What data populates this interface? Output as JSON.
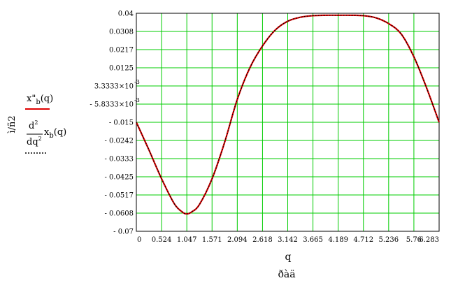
{
  "chart_data": {
    "type": "line",
    "xlabel": "q",
    "xunit": "ðàä",
    "ylabel": "ì/ñ2",
    "x_ticks": [
      "0",
      "0.524",
      "1.047",
      "1.571",
      "2.094",
      "2.618",
      "3.142",
      "3.665",
      "4.189",
      "4.712",
      "5.236",
      "5.76",
      "6.283"
    ],
    "y_ticks": [
      "0.04",
      "0.0308",
      "0.0217",
      "0.0125",
      "3.3333×10",
      "- 5.8333×10",
      "- 0.015",
      "- 0.0242",
      "- 0.0333",
      "- 0.0425",
      "- 0.0517",
      "- 0.0608",
      "- 0.07"
    ],
    "y_tick_exponents": [
      "",
      "",
      "",
      "",
      "-3",
      "-3",
      "",
      "",
      "",
      "",
      "",
      "",
      ""
    ],
    "xlim": [
      0,
      6.283
    ],
    "ylim": [
      -0.07,
      0.04
    ],
    "grid": true,
    "legend": [
      {
        "label": "x\"b(q)",
        "style": "solid",
        "color": "#e00000"
      },
      {
        "label": "d²/dq² xb(q)",
        "style": "dotted",
        "color": "#000000"
      }
    ],
    "series": [
      {
        "name": "x\"b(q)",
        "color": "#e00000",
        "x": [
          0,
          0.262,
          0.524,
          0.785,
          0.95,
          1.047,
          1.15,
          1.309,
          1.571,
          1.833,
          2.094,
          2.356,
          2.618,
          2.88,
          3.142,
          3.403,
          3.665,
          3.927,
          4.189,
          4.45,
          4.712,
          4.974,
          5.236,
          5.498,
          5.76,
          6.021,
          6.283
        ],
        "y": [
          -0.015,
          -0.029,
          -0.0435,
          -0.056,
          -0.0602,
          -0.0612,
          -0.0602,
          -0.0565,
          -0.0435,
          -0.025,
          -0.0035,
          0.0125,
          0.0235,
          0.0315,
          0.036,
          0.038,
          0.0388,
          0.039,
          0.039,
          0.039,
          0.0388,
          0.0377,
          0.0348,
          0.0295,
          0.018,
          0.0025,
          -0.015
        ]
      },
      {
        "name": "d²/dq² xb(q)",
        "color": "#000000",
        "x": [
          0,
          0.262,
          0.524,
          0.785,
          0.95,
          1.047,
          1.15,
          1.309,
          1.571,
          1.833,
          2.094,
          2.356,
          2.618,
          2.88,
          3.142,
          3.403,
          3.665,
          3.927,
          4.189,
          4.45,
          4.712,
          4.974,
          5.236,
          5.498,
          5.76,
          6.021,
          6.283
        ],
        "y": [
          -0.015,
          -0.029,
          -0.0435,
          -0.056,
          -0.0602,
          -0.0612,
          -0.0602,
          -0.0565,
          -0.0435,
          -0.025,
          -0.0035,
          0.0125,
          0.0235,
          0.0315,
          0.036,
          0.038,
          0.0388,
          0.039,
          0.039,
          0.039,
          0.0388,
          0.0377,
          0.0348,
          0.0295,
          0.018,
          0.0025,
          -0.015
        ]
      }
    ]
  },
  "legend_text": {
    "series1_main": "x\"",
    "series1_sub": "b",
    "series1_arg": "(q)",
    "series2_num": "d",
    "series2_num_sup": "2",
    "series2_den": "dq",
    "series2_den_sup": "2",
    "series2_main": "x",
    "series2_sub": "b",
    "series2_arg": "(q)"
  }
}
